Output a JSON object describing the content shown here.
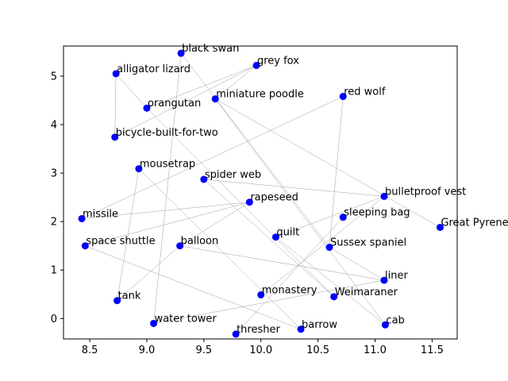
{
  "chart_data": {
    "type": "scatter",
    "title": "",
    "xlabel": "",
    "ylabel": "",
    "xlim": [
      8.27,
      11.72
    ],
    "ylim": [
      -0.42,
      5.62
    ],
    "xticks": [
      "8.5",
      "9.0",
      "9.5",
      "10.0",
      "10.5",
      "11.0",
      "11.5"
    ],
    "yticks": [
      "0",
      "1",
      "2",
      "3",
      "4",
      "5"
    ],
    "grid": false,
    "marker_color": "#0000ff",
    "edge_color": "#a0a0a0",
    "points": [
      {
        "label": "black swan",
        "x": 9.3,
        "y": 5.47
      },
      {
        "label": "grey fox",
        "x": 9.96,
        "y": 5.22
      },
      {
        "label": "alligator lizard",
        "x": 8.73,
        "y": 5.05
      },
      {
        "label": "miniature poodle",
        "x": 9.6,
        "y": 4.53
      },
      {
        "label": "red wolf",
        "x": 10.72,
        "y": 4.58
      },
      {
        "label": "orangutan",
        "x": 9.0,
        "y": 4.34
      },
      {
        "label": "bicycle-built-for-two",
        "x": 8.72,
        "y": 3.74
      },
      {
        "label": "mousetrap",
        "x": 8.93,
        "y": 3.09
      },
      {
        "label": "spider web",
        "x": 9.5,
        "y": 2.87
      },
      {
        "label": "bulletproof vest",
        "x": 11.08,
        "y": 2.52
      },
      {
        "label": "rapeseed",
        "x": 9.9,
        "y": 2.4
      },
      {
        "label": "missile",
        "x": 8.43,
        "y": 2.06
      },
      {
        "label": "sleeping bag",
        "x": 10.72,
        "y": 2.09
      },
      {
        "label": "Great Pyrenees",
        "x": 11.57,
        "y": 1.88
      },
      {
        "label": "quilt",
        "x": 10.13,
        "y": 1.68
      },
      {
        "label": "space shuttle",
        "x": 8.46,
        "y": 1.5
      },
      {
        "label": "balloon",
        "x": 9.29,
        "y": 1.5
      },
      {
        "label": "Sussex spaniel",
        "x": 10.6,
        "y": 1.47
      },
      {
        "label": "liner",
        "x": 11.08,
        "y": 0.79
      },
      {
        "label": "monastery",
        "x": 10.0,
        "y": 0.49
      },
      {
        "label": "Weimaraner",
        "x": 10.64,
        "y": 0.45
      },
      {
        "label": "tank",
        "x": 8.74,
        "y": 0.37
      },
      {
        "label": "water tower",
        "x": 9.06,
        "y": -0.1
      },
      {
        "label": "cab",
        "x": 11.09,
        "y": -0.13
      },
      {
        "label": "barrow",
        "x": 10.35,
        "y": -0.22
      },
      {
        "label": "thresher",
        "x": 9.78,
        "y": -0.32
      }
    ],
    "edges": [
      [
        "alligator lizard",
        "bicycle-built-for-two"
      ],
      [
        "alligator lizard",
        "orangutan"
      ],
      [
        "orangutan",
        "grey fox"
      ],
      [
        "grey fox",
        "bicycle-built-for-two"
      ],
      [
        "grey fox",
        "miniature poodle"
      ],
      [
        "orangutan",
        "Weimaraner"
      ],
      [
        "black swan",
        "water tower"
      ],
      [
        "black swan",
        "Sussex spaniel"
      ],
      [
        "miniature poodle",
        "Great Pyrenees"
      ],
      [
        "miniature poodle",
        "cab"
      ],
      [
        "red wolf",
        "missile"
      ],
      [
        "red wolf",
        "Sussex spaniel"
      ],
      [
        "mousetrap",
        "tank"
      ],
      [
        "mousetrap",
        "barrow"
      ],
      [
        "spider web",
        "bulletproof vest"
      ],
      [
        "spider web",
        "Weimaraner"
      ],
      [
        "bulletproof vest",
        "quilt"
      ],
      [
        "bulletproof vest",
        "monastery"
      ],
      [
        "rapeseed",
        "missile"
      ],
      [
        "rapeseed",
        "balloon"
      ],
      [
        "rapeseed",
        "space shuttle"
      ],
      [
        "sleeping bag",
        "thresher"
      ],
      [
        "quilt",
        "cab"
      ],
      [
        "space shuttle",
        "barrow"
      ],
      [
        "balloon",
        "tank"
      ],
      [
        "balloon",
        "liner"
      ],
      [
        "Sussex spaniel",
        "liner"
      ],
      [
        "liner",
        "water tower"
      ]
    ]
  }
}
